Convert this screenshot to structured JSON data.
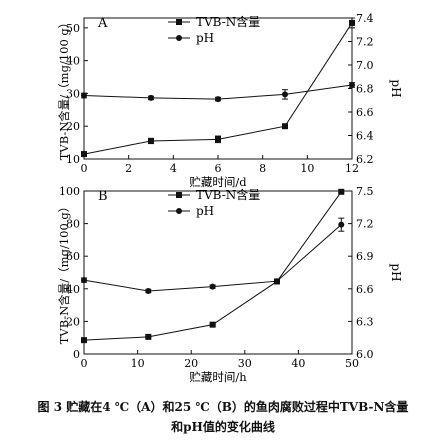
{
  "figure": {
    "caption_line1": "图 3    贮藏在4 ℃（A）和25 ℃（B）的鱼肉腐败过程中TVB-N含量",
    "caption_line2": "和pH值的变化曲线"
  },
  "chart_data": [
    {
      "type": "line",
      "panel": "A",
      "xlabel": "贮藏时间/d",
      "ylabel": "TVB-N含量/（mg/100 g）",
      "y2label": "pH",
      "xlim": [
        0,
        12
      ],
      "xticks": [
        0,
        2,
        4,
        6,
        8,
        10,
        12
      ],
      "ylim": [
        10,
        53
      ],
      "yticks": [
        10,
        20,
        30,
        40,
        50
      ],
      "y2lim": [
        6.2,
        7.4
      ],
      "y2ticks": [
        6.2,
        6.4,
        6.6,
        6.8,
        7.0,
        7.2,
        7.4
      ],
      "legend_position": "top-center",
      "series": [
        {
          "name": "TVB-N含量",
          "marker": "square",
          "axis": "left",
          "x": [
            0,
            3,
            6,
            9,
            12
          ],
          "y": [
            11.5,
            15.5,
            16,
            20,
            51.5
          ],
          "err": [
            0.5,
            0.8,
            1.0,
            0.5,
            1.5
          ]
        },
        {
          "name": "pH",
          "marker": "circle",
          "axis": "right",
          "x": [
            0,
            3,
            6,
            9,
            12
          ],
          "y": [
            6.74,
            6.72,
            6.71,
            6.75,
            6.83
          ],
          "err": [
            0.02,
            0.015,
            0.015,
            0.04,
            0.02
          ]
        }
      ]
    },
    {
      "type": "line",
      "panel": "B",
      "xlabel": "贮藏时间/h",
      "ylabel": "TVB-N含量/（mg/100 g）",
      "y2label": "pH",
      "xlim": [
        0,
        50
      ],
      "xticks": [
        0,
        10,
        20,
        30,
        40,
        50
      ],
      "ylim": [
        0,
        100
      ],
      "yticks": [
        0,
        20,
        40,
        60,
        80,
        100
      ],
      "y2lim": [
        6.0,
        7.5
      ],
      "y2ticks": [
        6.0,
        6.3,
        6.6,
        6.9,
        7.2,
        7.5
      ],
      "legend_position": "top-center",
      "series": [
        {
          "name": "TVB-N含量",
          "marker": "square",
          "axis": "left",
          "x": [
            0,
            12,
            24,
            36,
            48
          ],
          "y": [
            8.5,
            10.5,
            18,
            44.5,
            99.5
          ],
          "err": [
            0.5,
            0.5,
            0.5,
            1.0,
            0.5
          ]
        },
        {
          "name": "pH",
          "marker": "circle",
          "axis": "right",
          "x": [
            0,
            12,
            24,
            36,
            48
          ],
          "y": [
            6.68,
            6.58,
            6.62,
            6.67,
            7.19
          ],
          "err": [
            0.02,
            0.015,
            0.015,
            0.015,
            0.06
          ]
        }
      ]
    }
  ]
}
